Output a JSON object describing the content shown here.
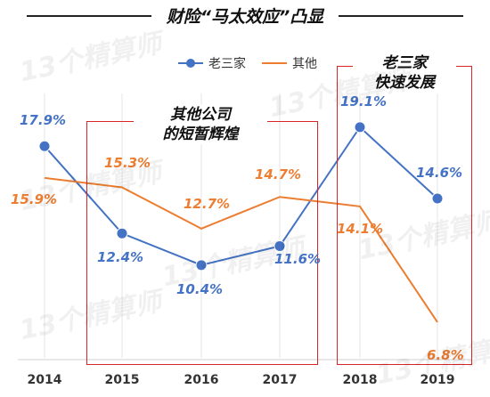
{
  "chart_data": {
    "type": "line",
    "title": "财险“马太效应”凸显",
    "categories": [
      "2014",
      "2015",
      "2016",
      "2017",
      "2018",
      "2019"
    ],
    "series": [
      {
        "name": "老三家",
        "color": "#4472c4",
        "marker": "circle",
        "values": [
          17.9,
          12.4,
          10.4,
          11.6,
          19.1,
          14.6
        ],
        "labels": [
          "17.9%",
          "12.4%",
          "10.4%",
          "11.6%",
          "19.1%",
          "14.6%"
        ]
      },
      {
        "name": "其他",
        "color": "#ed7d31",
        "marker": "none",
        "values": [
          15.9,
          15.3,
          12.7,
          14.7,
          14.1,
          6.8
        ],
        "labels": [
          "15.9%",
          "15.3%",
          "12.7%",
          "14.7%",
          "14.1%",
          "6.8%"
        ]
      }
    ],
    "ylim": [
      5,
      21
    ],
    "grid": true,
    "legend_position": "top",
    "annotations": [
      {
        "text_lines": [
          "其他公司",
          "的短暂辉煌"
        ],
        "span": [
          "2015",
          "2017"
        ],
        "color": "#d9252a"
      },
      {
        "text_lines": [
          "老三家",
          "快速发展"
        ],
        "span": [
          "2018",
          "2019"
        ],
        "color": "#d9252a"
      }
    ]
  },
  "watermark": "13个精算师"
}
